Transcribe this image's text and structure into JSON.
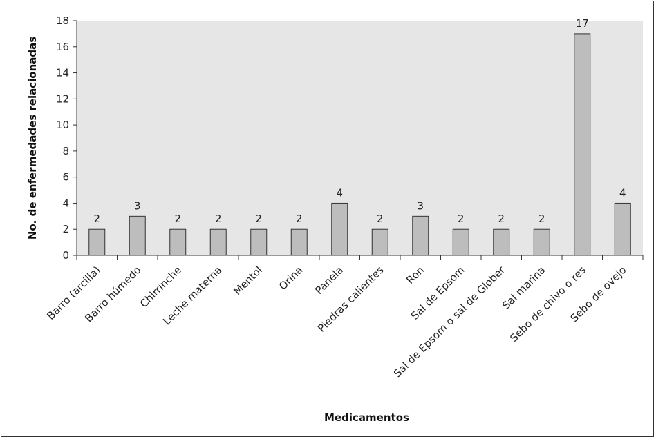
{
  "chart_data": {
    "type": "bar",
    "title": "",
    "xlabel": "Medicamentos",
    "ylabel": "No. de enfermedades relacionadas",
    "ylim": [
      0,
      18
    ],
    "yticks": [
      "0",
      "2",
      "4",
      "6",
      "8",
      "10",
      "12",
      "14",
      "16",
      "18"
    ],
    "categories": [
      "Barro (arcilla)",
      "Barro húmedo",
      "Chirrinche",
      "Leche materna",
      "Mentol",
      "Orina",
      "Panela",
      "Piedras calientes",
      "Ron",
      "Sal de Epsom",
      "Sal de Epsom o sal de Glober",
      "Sal marina",
      "Sebo de chivo o res",
      "Sebo de ovejo"
    ],
    "values": [
      2,
      3,
      2,
      2,
      2,
      2,
      4,
      2,
      3,
      2,
      2,
      2,
      17,
      4
    ],
    "value_labels": [
      "2",
      "3",
      "2",
      "2",
      "2",
      "2",
      "4",
      "2",
      "3",
      "2",
      "2",
      "2",
      "17",
      "4"
    ],
    "grid": false,
    "legend": "none",
    "colors": {
      "plot_background": "#e6e6e6",
      "bar_fill": "#bdbdbd",
      "bar_stroke": "#333333",
      "axis": "#333333"
    }
  }
}
